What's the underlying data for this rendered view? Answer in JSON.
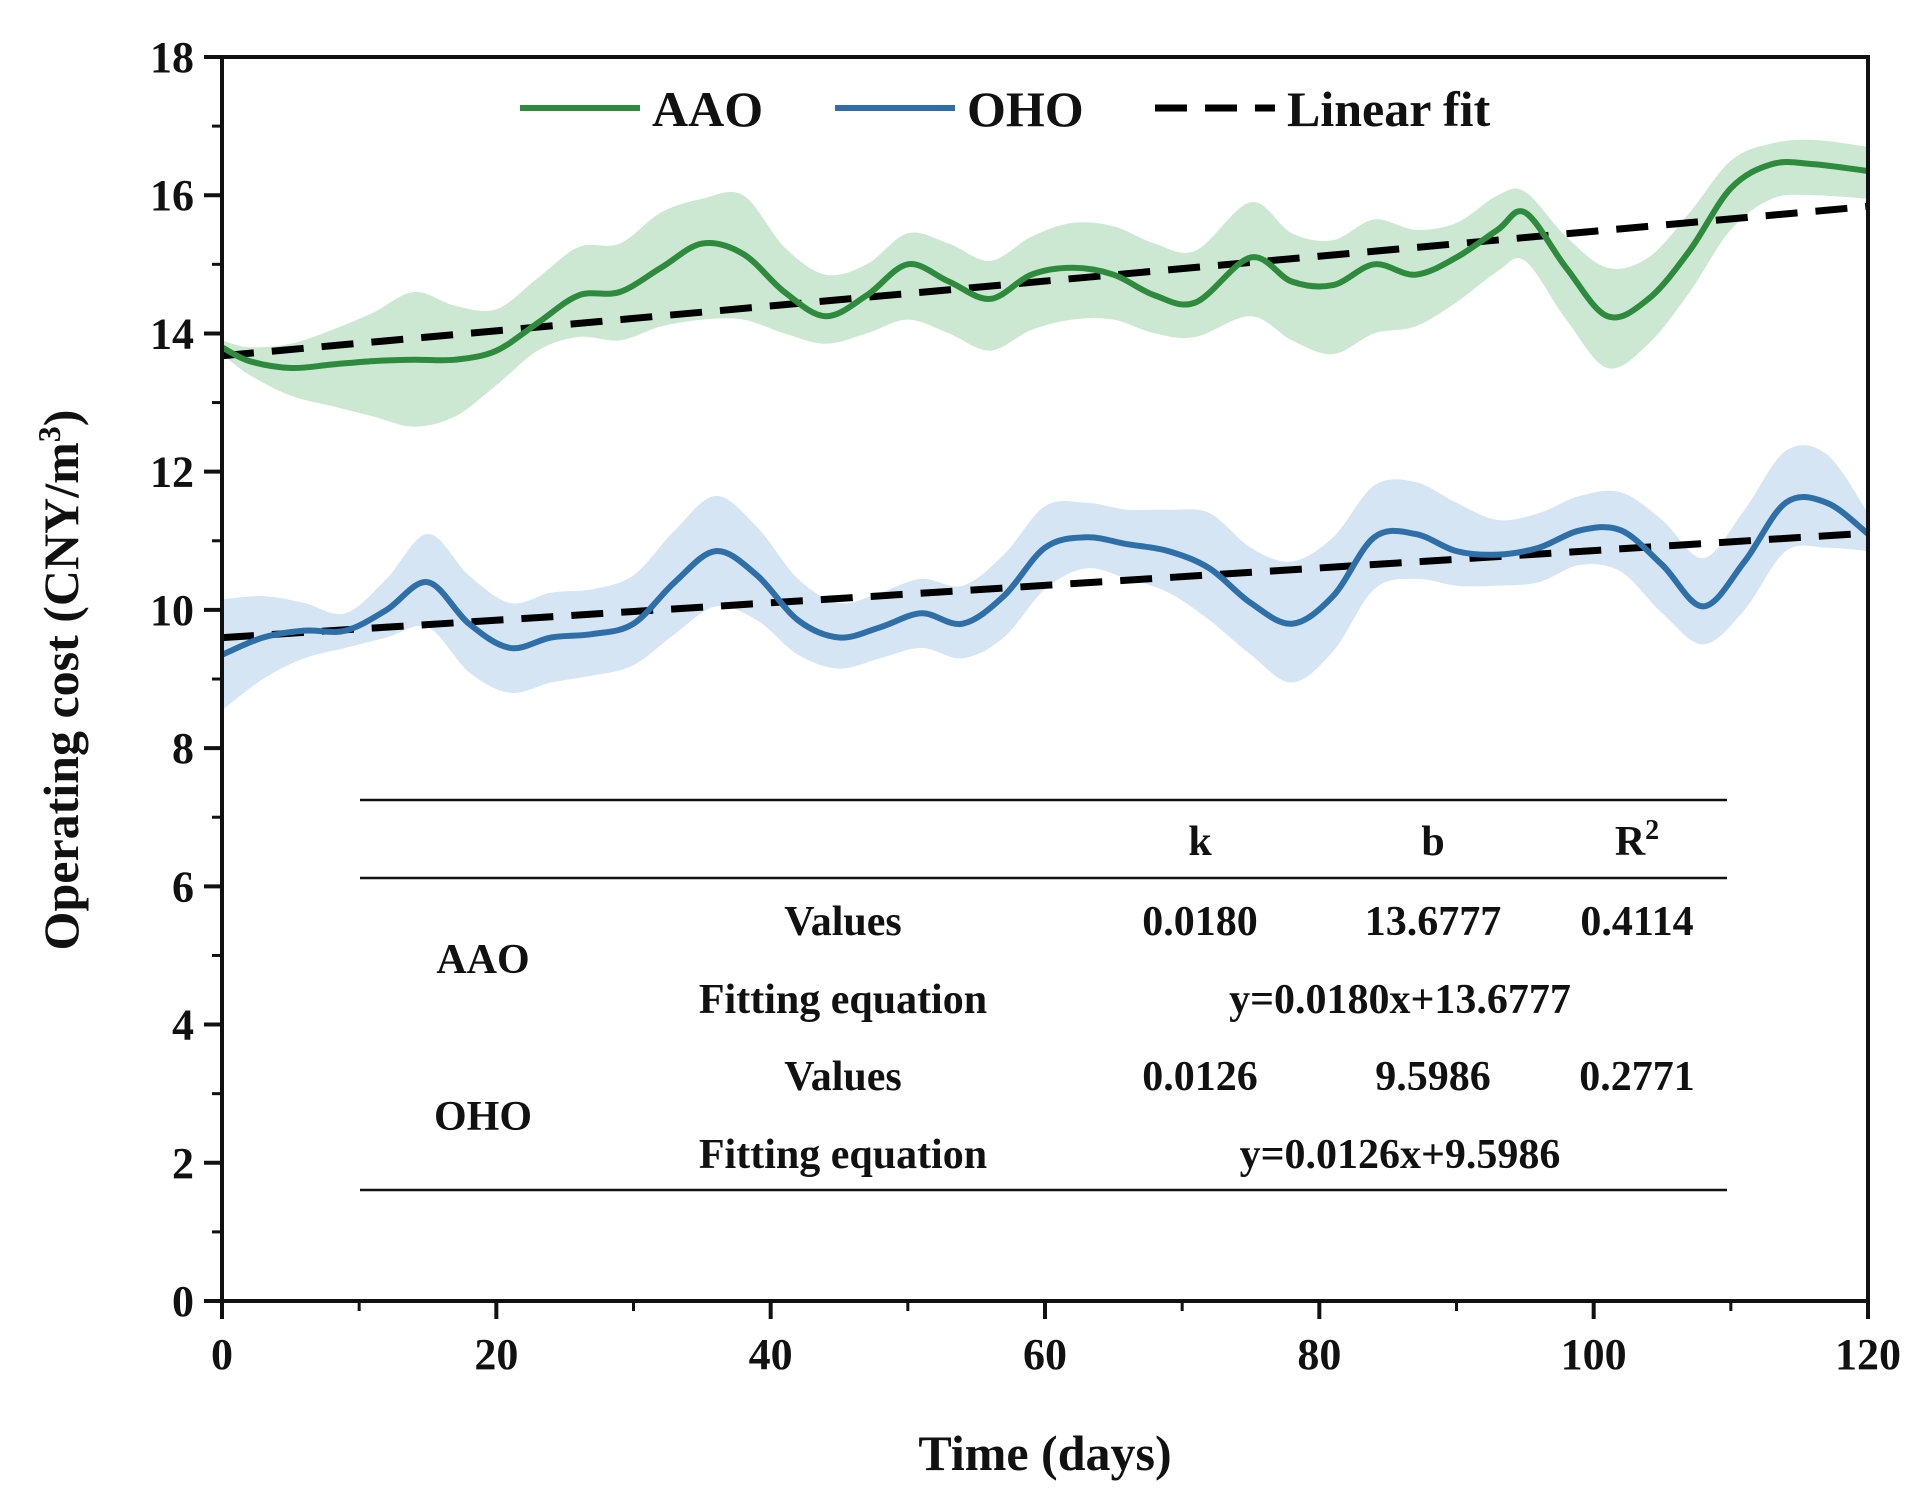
{
  "chart_data": {
    "type": "line",
    "xlabel": "Time (days)",
    "ylabel_main": "Operating cost (CNY/m",
    "ylabel_sup": "3",
    "ylabel_close": ")",
    "xlim": [
      0,
      120
    ],
    "ylim": [
      0,
      18
    ],
    "xticks": [
      0,
      20,
      40,
      60,
      80,
      100,
      120
    ],
    "yticks": [
      0,
      2,
      4,
      6,
      8,
      10,
      12,
      14,
      16,
      18
    ],
    "legend_position": "top-center",
    "legend": [
      {
        "label": "AAO",
        "style": "solid",
        "color": "#2e8b3e"
      },
      {
        "label": "OHO",
        "style": "solid",
        "color": "#2f6fa8"
      },
      {
        "label": "Linear fit",
        "style": "dashed",
        "color": "#000000"
      }
    ],
    "colors": {
      "aao_line": "#2e8b3e",
      "aao_band": "#cde8d2",
      "oho_line": "#2f6fa8",
      "oho_band": "#d5e5f3",
      "fit_line": "#000000"
    },
    "series": [
      {
        "name": "AAO",
        "x": [
          0,
          2,
          5,
          8,
          11,
          14,
          17,
          20,
          23,
          26,
          29,
          32,
          35,
          38,
          41,
          44,
          47,
          50,
          53,
          56,
          59,
          62,
          65,
          68,
          71,
          75,
          78,
          81,
          84,
          87,
          90,
          93,
          95,
          98,
          101,
          104,
          107,
          110,
          113,
          116,
          120
        ],
        "y": [
          13.8,
          13.6,
          13.5,
          13.55,
          13.6,
          13.62,
          13.62,
          13.75,
          14.15,
          14.55,
          14.6,
          14.95,
          15.3,
          15.15,
          14.6,
          14.25,
          14.55,
          15.0,
          14.75,
          14.5,
          14.85,
          14.95,
          14.85,
          14.55,
          14.45,
          15.1,
          14.75,
          14.7,
          15.0,
          14.85,
          15.1,
          15.5,
          15.75,
          14.95,
          14.25,
          14.5,
          15.2,
          16.1,
          16.45,
          16.45,
          16.35
        ],
        "lower": [
          13.7,
          13.4,
          13.1,
          12.95,
          12.8,
          12.65,
          12.8,
          13.25,
          13.75,
          13.95,
          13.9,
          14.1,
          14.2,
          14.2,
          14.0,
          13.85,
          14.0,
          14.2,
          14.0,
          13.75,
          14.05,
          14.2,
          14.2,
          14.0,
          13.95,
          14.25,
          13.9,
          13.7,
          14.0,
          14.1,
          14.45,
          14.9,
          15.05,
          14.2,
          13.5,
          13.85,
          14.6,
          15.5,
          15.95,
          16.0,
          15.95
        ],
        "upper": [
          13.9,
          13.8,
          13.85,
          14.05,
          14.3,
          14.6,
          14.4,
          14.35,
          14.8,
          15.25,
          15.3,
          15.75,
          15.95,
          16.0,
          15.25,
          14.85,
          15.0,
          15.45,
          15.3,
          15.05,
          15.4,
          15.6,
          15.55,
          15.3,
          15.2,
          15.9,
          15.45,
          15.35,
          15.65,
          15.5,
          15.6,
          16.0,
          16.05,
          15.4,
          14.95,
          15.1,
          15.75,
          16.5,
          16.75,
          16.8,
          16.7
        ]
      },
      {
        "name": "OHO",
        "x": [
          0,
          3,
          6,
          9,
          12,
          15,
          18,
          21,
          24,
          27,
          30,
          33,
          36,
          39,
          42,
          45,
          48,
          51,
          54,
          57,
          60,
          63,
          66,
          69,
          72,
          75,
          78,
          81,
          84,
          87,
          90,
          93,
          96,
          99,
          102,
          105,
          108,
          111,
          114,
          117,
          120
        ],
        "y": [
          9.35,
          9.6,
          9.7,
          9.7,
          10.0,
          10.4,
          9.8,
          9.45,
          9.6,
          9.65,
          9.8,
          10.4,
          10.85,
          10.5,
          9.85,
          9.6,
          9.75,
          9.95,
          9.8,
          10.2,
          10.9,
          11.05,
          10.95,
          10.85,
          10.6,
          10.1,
          9.8,
          10.2,
          11.05,
          11.1,
          10.85,
          10.8,
          10.9,
          11.15,
          11.15,
          10.65,
          10.05,
          10.7,
          11.55,
          11.55,
          11.1
        ],
        "lower": [
          8.55,
          9.0,
          9.3,
          9.45,
          9.6,
          9.75,
          9.1,
          8.8,
          8.95,
          9.05,
          9.2,
          9.65,
          10.05,
          9.85,
          9.35,
          9.15,
          9.3,
          9.45,
          9.3,
          9.6,
          10.3,
          10.6,
          10.45,
          10.25,
          9.85,
          9.35,
          8.95,
          9.4,
          10.3,
          10.45,
          10.35,
          10.35,
          10.4,
          10.65,
          10.55,
          9.95,
          9.5,
          10.0,
          10.85,
          10.9,
          10.85
        ],
        "upper": [
          10.15,
          10.2,
          10.1,
          9.95,
          10.45,
          11.1,
          10.5,
          10.1,
          10.25,
          10.3,
          10.5,
          11.15,
          11.65,
          11.2,
          10.45,
          10.1,
          10.25,
          10.45,
          10.35,
          10.8,
          11.5,
          11.55,
          11.45,
          11.45,
          11.4,
          10.9,
          10.7,
          11.05,
          11.8,
          11.85,
          11.55,
          11.3,
          11.4,
          11.65,
          11.7,
          11.3,
          10.75,
          11.45,
          12.3,
          12.25,
          11.4
        ]
      },
      {
        "name": "Linear fit",
        "role": "AAO",
        "x": [
          0,
          120
        ],
        "y": [
          13.6777,
          15.8377
        ]
      },
      {
        "name": "Linear fit",
        "role": "OHO",
        "x": [
          0,
          120
        ],
        "y": [
          9.5986,
          11.1106
        ]
      }
    ],
    "fit_table": {
      "headers": [
        "k",
        "b",
        "R2"
      ],
      "r2_base": "R",
      "r2_sup": "2",
      "rows": [
        {
          "group": "AAO",
          "label": "Values",
          "k": "0.0180",
          "b": "13.6777",
          "r2": "0.4114"
        },
        {
          "group": "AAO",
          "label": "Fitting equation",
          "equation": "y=0.0180x+13.6777"
        },
        {
          "group": "OHO",
          "label": "Values",
          "k": "0.0126",
          "b": "9.5986",
          "r2": "0.2771"
        },
        {
          "group": "OHO",
          "label": "Fitting equation",
          "equation": "y=0.0126x+9.5986"
        }
      ]
    }
  }
}
